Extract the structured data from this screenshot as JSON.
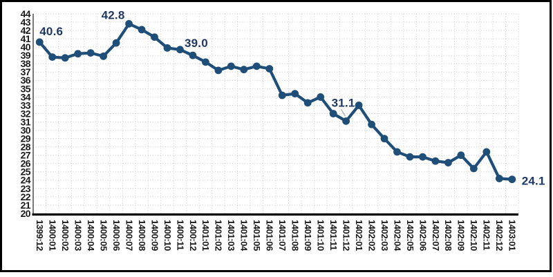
{
  "chart_data": {
    "type": "line",
    "title": "",
    "xlabel": "",
    "ylabel": "",
    "legend": "none",
    "ylim": [
      20,
      44
    ],
    "y_ticks": [
      44,
      43,
      42,
      41,
      40,
      39,
      38,
      37,
      36,
      35,
      34,
      33,
      32,
      31,
      30,
      29,
      28,
      27,
      26,
      25,
      24,
      23,
      22,
      21,
      20
    ],
    "categories": [
      "1399:12",
      "1400:01",
      "1400:02",
      "1400:03",
      "1400:04",
      "1400:05",
      "1400:06",
      "1400:07",
      "1400:08",
      "1400:09",
      "1400:10",
      "1400:11",
      "1400:12",
      "1401:01",
      "1401:02",
      "1401:03",
      "1401:04",
      "1401:05",
      "1401:06",
      "1401:07",
      "1401:08",
      "1401:09",
      "1401:10",
      "1401:11",
      "1401:12",
      "1402:01",
      "1402:02",
      "1402:03",
      "1402:04",
      "1402:05",
      "1402:06",
      "1402:07",
      "1402:08",
      "1402:09",
      "1402:10",
      "1402:11",
      "1402:12",
      "1403:01"
    ],
    "values": [
      40.6,
      38.8,
      38.7,
      39.2,
      39.3,
      38.9,
      40.5,
      42.8,
      42.1,
      41.2,
      39.9,
      39.7,
      39.0,
      38.2,
      37.2,
      37.7,
      37.3,
      37.7,
      37.4,
      34.2,
      34.4,
      33.3,
      34.0,
      32.0,
      31.1,
      33.0,
      30.7,
      29.0,
      27.4,
      26.8,
      26.8,
      26.3,
      26.1,
      27.0,
      25.4,
      27.4,
      24.2,
      24.1
    ],
    "annotations": [
      {
        "index": 0,
        "text": "40.6",
        "leader": false
      },
      {
        "index": 7,
        "text": "42.8",
        "leader": false
      },
      {
        "index": 12,
        "text": "39.0",
        "leader": false
      },
      {
        "index": 24,
        "text": "31.1",
        "leader": true
      },
      {
        "index": 37,
        "text": "24.1",
        "leader": false
      }
    ],
    "grid": {
      "horizontal": true,
      "vertical": true,
      "style": "dotted"
    },
    "colors": {
      "line": "#1F4E79",
      "marker": "#1F4E79",
      "data_label": "#1F3864",
      "tick_label": "#1A1A1A",
      "gridline": "#C9C9C9",
      "x_axis": "#000000",
      "y_axis": "#595959",
      "leader_line": "#A6A6A6",
      "frame_border": "#000000",
      "background": "#FFFFFF"
    }
  }
}
